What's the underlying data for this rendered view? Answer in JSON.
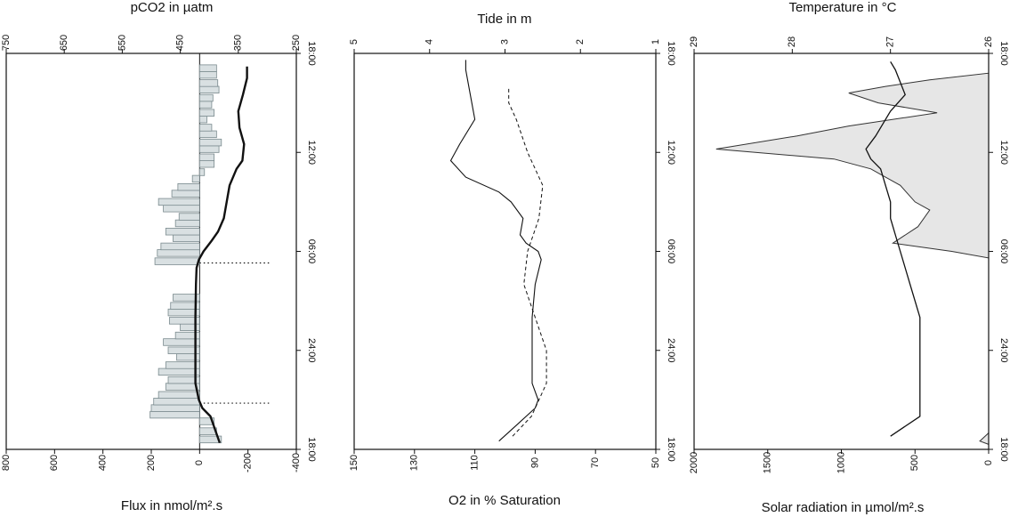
{
  "chart_data": [
    {
      "type": "bar",
      "panel": "left",
      "top_axis": {
        "label": "pCO2 in µatm",
        "min": 750,
        "max": 250,
        "ticks": [
          750,
          650,
          550,
          450,
          350,
          250
        ]
      },
      "bottom_axis": {
        "label": "Flux in nmol/m².s",
        "min": 800,
        "max": -400,
        "ticks": [
          800,
          600,
          400,
          200,
          0,
          -200,
          -400
        ]
      },
      "right_axis": {
        "ticks": [
          "18:00",
          "12:00",
          "06:00",
          "24:00",
          "18:00"
        ],
        "tick_hours": [
          24,
          18,
          12,
          6,
          0
        ]
      },
      "dotted_hours": [
        2.8,
        11.3
      ],
      "flux_bars": {
        "name": "",
        "hours": [
          0.6,
          1.1,
          1.7,
          2.1,
          2.5,
          2.9,
          3.3,
          3.8,
          4.2,
          4.7,
          5.1,
          5.6,
          6.0,
          6.5,
          6.9,
          7.4,
          7.8,
          8.3,
          8.7,
          9.2,
          9.6,
          10.1,
          10.5,
          11.0,
          11.4,
          11.9,
          12.3,
          12.8,
          13.2,
          13.7,
          14.1,
          14.6,
          15.0,
          15.5,
          15.9,
          16.4,
          16.8,
          17.3,
          17.7,
          18.2,
          18.6,
          19.1,
          19.5,
          20.0,
          20.4,
          20.9,
          21.3,
          21.8,
          22.2,
          22.7,
          23.1
        ],
        "values": [
          -90,
          -70,
          -60,
          205,
          200,
          190,
          170,
          140,
          130,
          170,
          140,
          95,
          130,
          150,
          100,
          80,
          125,
          130,
          120,
          110,
          0,
          0,
          0,
          0,
          185,
          175,
          160,
          110,
          140,
          100,
          85,
          150,
          170,
          115,
          90,
          30,
          -20,
          -60,
          -60,
          -80,
          -90,
          -70,
          -50,
          -30,
          -60,
          -50,
          -55,
          -80,
          -75,
          -70,
          -70
        ]
      },
      "pco2_line": {
        "name": "",
        "hours": [
          0.4,
          1.0,
          2.0,
          2.5,
          3.0,
          4.0,
          5.0,
          6.0,
          8.0,
          10.0,
          11.0,
          11.5,
          12.0,
          12.6,
          13.2,
          14.0,
          16.0,
          17.0,
          17.5,
          18.5,
          19.5,
          20.5,
          21.5,
          22.5,
          23.2
        ],
        "values": [
          382,
          388,
          398,
          412,
          418,
          424,
          424,
          424,
          424,
          423,
          422,
          418,
          410,
          397,
          385,
          375,
          365,
          353,
          343,
          340,
          348,
          350,
          342,
          335,
          335
        ]
      }
    },
    {
      "type": "line",
      "panel": "middle",
      "top_axis": {
        "label": "Tide in m",
        "min": 5,
        "max": 1,
        "ticks": [
          5,
          4,
          3,
          2,
          1
        ]
      },
      "bottom_axis": {
        "label": "O2 in % Saturation",
        "min": 150,
        "max": 50,
        "ticks": [
          150,
          130,
          110,
          90,
          70,
          50
        ]
      },
      "right_axis": {
        "ticks": [
          "18:00",
          "12:00",
          "06:00",
          "24:00",
          "18:00"
        ],
        "tick_hours": [
          24,
          18,
          12,
          6,
          0
        ]
      },
      "series": [
        {
          "name": "",
          "style": "solid",
          "hours": [
            0.5,
            1.5,
            2.5,
            3.0,
            4.0,
            6.0,
            8.0,
            10.0,
            11.5,
            12.0,
            12.5,
            13.0,
            14.0,
            15.0,
            15.6,
            16.5,
            17.5,
            18.5,
            20.0,
            21.0,
            22.0,
            23.0,
            23.6
          ],
          "values": [
            102,
            96,
            90,
            89,
            91,
            91,
            91,
            90,
            88,
            89,
            93,
            95,
            94,
            98,
            102,
            113,
            118,
            115,
            110,
            111,
            112,
            113,
            113
          ]
        },
        {
          "name": "",
          "style": "dashed",
          "hours": [
            0.8,
            2.0,
            4.0,
            6.0,
            8.0,
            10.0,
            12.0,
            14.0,
            16.0,
            18.0,
            20.0,
            21.0,
            22.0
          ],
          "values": [
            2.9,
            2.65,
            2.45,
            2.45,
            2.6,
            2.75,
            2.7,
            2.55,
            2.5,
            2.7,
            2.85,
            2.95,
            2.95
          ]
        }
      ]
    },
    {
      "type": "area",
      "panel": "right",
      "top_axis": {
        "label": "Temperature in °C",
        "min": 29,
        "max": 26,
        "ticks": [
          29,
          28,
          27,
          26
        ]
      },
      "bottom_axis": {
        "label": "Solar radiation in µmol/m².s",
        "min": 2000,
        "max": 0,
        "ticks": [
          2000,
          1500,
          1000,
          500,
          0
        ]
      },
      "right_axis": {
        "ticks": [
          "18:00",
          "12:00",
          "06:00",
          "24:00",
          "18:00"
        ],
        "tick_hours": [
          24,
          18,
          12,
          6,
          0
        ]
      },
      "solar_area": {
        "name": "",
        "fill": "#e6e6e6",
        "hours": [
          0.3,
          0.5,
          1.0,
          11.6,
          12.0,
          12.5,
          13.5,
          14.5,
          15.0,
          16.0,
          16.5,
          17.0,
          17.6,
          18.2,
          19.0,
          19.6,
          20.4,
          21.0,
          21.6,
          22.0,
          22.4,
          22.8,
          23.6
        ],
        "values": [
          0,
          60,
          0,
          0,
          250,
          650,
          480,
          400,
          500,
          600,
          700,
          800,
          1050,
          1850,
          1300,
          950,
          350,
          750,
          950,
          700,
          400,
          0,
          0
        ]
      },
      "temperature_line": {
        "name": "",
        "style": "solid",
        "hours": [
          0.8,
          2.0,
          4.0,
          6.0,
          8.0,
          10.0,
          11.0,
          12.0,
          13.0,
          14.0,
          15.0,
          16.0,
          17.0,
          17.6,
          18.2,
          19.0,
          20.5,
          21.5,
          23.0,
          23.5
        ],
        "values": [
          27.0,
          26.7,
          26.7,
          26.7,
          26.7,
          26.8,
          26.85,
          26.9,
          26.95,
          27.0,
          27.0,
          27.05,
          27.1,
          27.2,
          27.25,
          27.15,
          27.0,
          26.85,
          26.95,
          27.0
        ]
      }
    }
  ]
}
